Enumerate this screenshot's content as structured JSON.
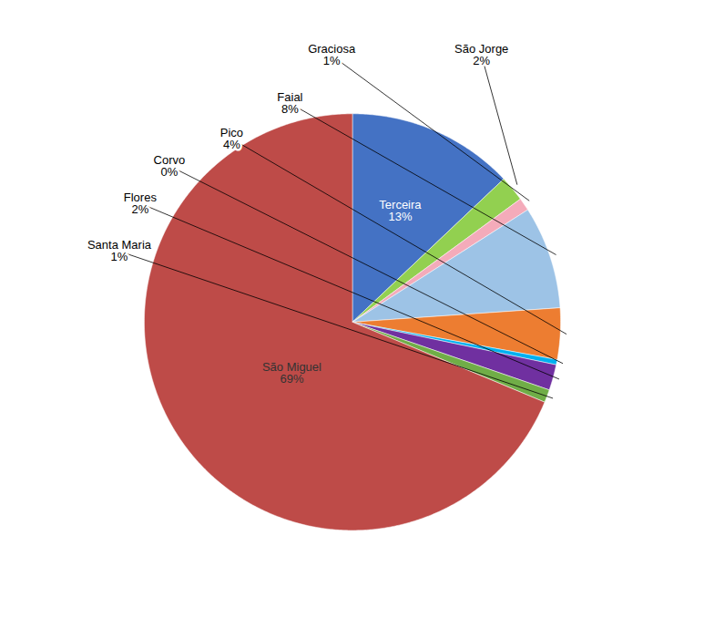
{
  "chart_data": {
    "type": "pie",
    "categories": [
      "Terceira",
      "São Jorge",
      "Graciosa",
      "Faial",
      "Pico",
      "Corvo",
      "Flores",
      "Santa Maria",
      "São Miguel"
    ],
    "values": [
      13,
      2,
      1,
      8,
      4,
      0.4,
      2,
      1,
      69
    ],
    "value_labels": [
      "13%",
      "2%",
      "1%",
      "8%",
      "4%",
      "0%",
      "2%",
      "1%",
      "69%"
    ],
    "colors": [
      "#4472C4",
      "#92D050",
      "#F4ABBA",
      "#9DC3E6",
      "#ED7D31",
      "#00B0F0",
      "#7030A0",
      "#70AD47",
      "#BE4B48"
    ],
    "data_labels": true
  }
}
